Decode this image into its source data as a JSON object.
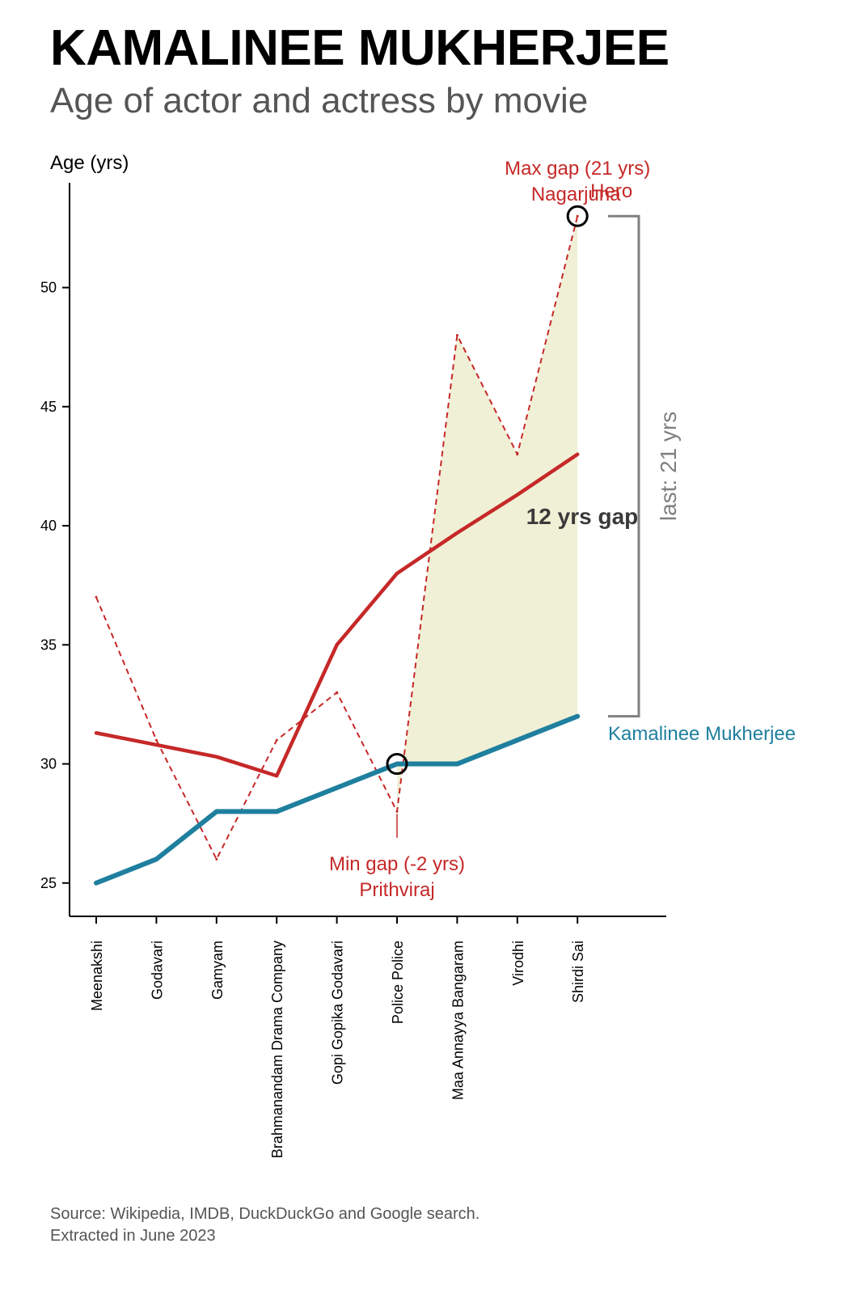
{
  "title": "KAMALINEE MUKHERJEE",
  "subtitle": "Age of actor and actress by movie",
  "source_lines": [
    "Source: Wikipedia, IMDB, DuckDuckGo and Google search.",
    "Extracted in June 2023"
  ],
  "chart_data": {
    "type": "line",
    "ylabel": "Age (yrs)",
    "xlabel": "",
    "ylim": [
      23.6,
      54.4
    ],
    "yticks": [
      25,
      30,
      35,
      40,
      45,
      50
    ],
    "categories": [
      "Meenakshi",
      "Godavari",
      "Gamyam",
      "Brahmanandam Drama Company",
      "Gopi Gopika Godavari",
      "Police Police",
      "Maa Annayya Bangaram",
      "Virodhi",
      "Shirdi Sai"
    ],
    "series": [
      {
        "name": "Kamalinee Mukherjee",
        "role": "actress",
        "color": "#1f7f9e",
        "values": [
          25,
          26,
          28,
          28,
          29,
          30,
          30,
          31,
          32
        ]
      },
      {
        "name": "",
        "role": "actor",
        "color": "#c62828",
        "values": [
          37,
          31,
          26,
          31,
          33,
          28,
          48,
          43,
          53
        ]
      },
      {
        "name": "",
        "role": "actor-trend",
        "color": "#c62828",
        "values": [
          31.3,
          30.8,
          30.3,
          29.5,
          35,
          38,
          39.7,
          41.3,
          43
        ]
      }
    ],
    "annotations": {
      "max_gap": {
        "label": "Max gap (21 yrs)",
        "name": "Nagarjuna",
        "extra": "Hero",
        "category": "Shirdi Sai",
        "value": 53
      },
      "min_gap": {
        "label": "Min gap (-2 yrs)",
        "name": "Prithviraj",
        "category": "Police Police",
        "value": 30
      },
      "avg_gap_label": "12 yrs gap",
      "last_gap_label": "last: 21 yrs"
    },
    "colors": {
      "actress": "#1f7f9e",
      "actor": "#c62828",
      "fill": "#eeeed2",
      "bracket": "#808080"
    },
    "grid": false,
    "legend": "direct labels"
  }
}
